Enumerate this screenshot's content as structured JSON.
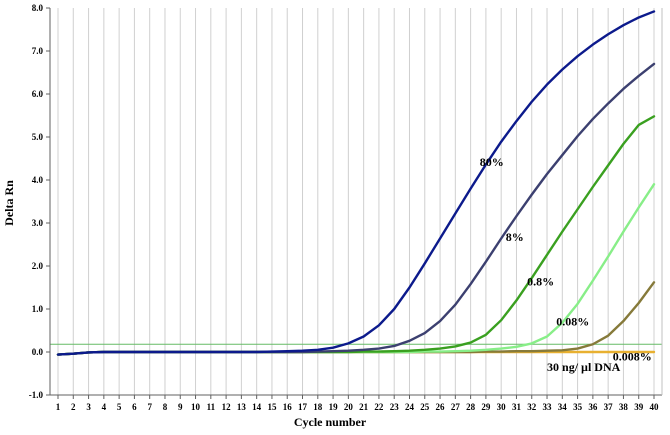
{
  "chart_data": {
    "type": "line",
    "title": "",
    "xlabel": "Cycle number",
    "ylabel": "Delta Rn",
    "xlim": [
      1,
      40
    ],
    "ylim": [
      -1.0,
      8.0
    ],
    "x_ticks": [
      "1",
      "2",
      "3",
      "4",
      "5",
      "6",
      "7",
      "8",
      "9",
      "10",
      "11",
      "12",
      "13",
      "14",
      "15",
      "16",
      "17",
      "18",
      "19",
      "20",
      "21",
      "22",
      "23",
      "24",
      "25",
      "26",
      "27",
      "28",
      "29",
      "30",
      "31",
      "32",
      "33",
      "34",
      "35",
      "36",
      "37",
      "38",
      "39",
      "40"
    ],
    "y_ticks": [
      "-1.0",
      "0.0",
      "1.0",
      "2.0",
      "3.0",
      "4.0",
      "5.0",
      "6.0",
      "7.0",
      "8.0"
    ],
    "grid": "vertical",
    "threshold": 0.18,
    "threshold_color": "#66bb66",
    "x": [
      1,
      2,
      3,
      4,
      5,
      6,
      7,
      8,
      9,
      10,
      11,
      12,
      13,
      14,
      15,
      16,
      17,
      18,
      19,
      20,
      21,
      22,
      23,
      24,
      25,
      26,
      27,
      28,
      29,
      30,
      31,
      32,
      33,
      34,
      35,
      36,
      37,
      38,
      39,
      40
    ],
    "series": [
      {
        "name": "80%",
        "color": "#0c1a8c",
        "values": [
          -0.06,
          -0.04,
          -0.01,
          0,
          0,
          0,
          0,
          0,
          0,
          0,
          0,
          0,
          0,
          0,
          0.01,
          0.02,
          0.03,
          0.05,
          0.1,
          0.2,
          0.36,
          0.62,
          1.0,
          1.5,
          2.06,
          2.64,
          3.22,
          3.8,
          4.36,
          4.89,
          5.37,
          5.82,
          6.22,
          6.57,
          6.88,
          7.15,
          7.39,
          7.6,
          7.78,
          7.92
        ],
        "label_x": 28.6,
        "label_y": 4.32
      },
      {
        "name": "8%",
        "color": "#3c4070",
        "values": [
          -0.06,
          -0.04,
          -0.01,
          0,
          0,
          0,
          0,
          0,
          0,
          0,
          0,
          0,
          0,
          0,
          0,
          0,
          0,
          0.01,
          0.02,
          0.03,
          0.05,
          0.08,
          0.14,
          0.26,
          0.44,
          0.72,
          1.1,
          1.58,
          2.1,
          2.64,
          3.16,
          3.66,
          4.14,
          4.58,
          5.02,
          5.42,
          5.78,
          6.12,
          6.42,
          6.7
        ],
        "label_x": 30.3,
        "label_y": 2.58
      },
      {
        "name": "0.8%",
        "color": "#3aa020",
        "values": [
          -0.06,
          -0.04,
          -0.01,
          0,
          0,
          0,
          0,
          0,
          0,
          0,
          0,
          0,
          0,
          0,
          0,
          0,
          0,
          0,
          0,
          0,
          0.01,
          0.01,
          0.02,
          0.03,
          0.05,
          0.08,
          0.13,
          0.22,
          0.4,
          0.74,
          1.2,
          1.72,
          2.26,
          2.8,
          3.32,
          3.84,
          4.34,
          4.84,
          5.28,
          5.48
        ],
        "label_x": 31.7,
        "label_y": 1.55
      },
      {
        "name": "0.08%",
        "color": "#88ee88",
        "values": [
          -0.06,
          -0.04,
          -0.01,
          0,
          0,
          0,
          0,
          0,
          0,
          0,
          0,
          0,
          0,
          0,
          0,
          0,
          0,
          0,
          0,
          0,
          0,
          0,
          0,
          0,
          0.01,
          0.01,
          0.02,
          0.03,
          0.05,
          0.08,
          0.12,
          0.2,
          0.36,
          0.68,
          1.12,
          1.66,
          2.22,
          2.8,
          3.36,
          3.9
        ],
        "label_x": 33.6,
        "label_y": 0.62
      },
      {
        "name": "0.008%",
        "color": "#867a3a",
        "values": [
          -0.06,
          -0.04,
          -0.01,
          0,
          0,
          0,
          0,
          0,
          0,
          0,
          0,
          0,
          0,
          0,
          0,
          0,
          0,
          0,
          0,
          0,
          0,
          0,
          0,
          0,
          0,
          0,
          0,
          0,
          0.01,
          0.01,
          0.02,
          0.02,
          0.03,
          0.04,
          0.08,
          0.18,
          0.38,
          0.72,
          1.14,
          1.62
        ],
        "label_x": 37.3,
        "label_y": -0.2
      },
      {
        "name": "30 ng/ µl DNA",
        "color": "#e8b030",
        "values": [
          -0.06,
          -0.04,
          -0.01,
          0,
          0,
          0,
          0,
          0,
          0,
          0,
          0,
          0,
          0,
          0,
          0,
          0,
          0,
          0,
          0,
          0,
          0,
          0,
          0,
          0,
          0,
          0,
          0,
          0,
          0,
          0,
          0,
          0,
          0,
          0,
          0,
          0,
          0,
          0,
          0,
          0
        ],
        "label_x": 33.0,
        "label_y": -0.44
      }
    ]
  }
}
